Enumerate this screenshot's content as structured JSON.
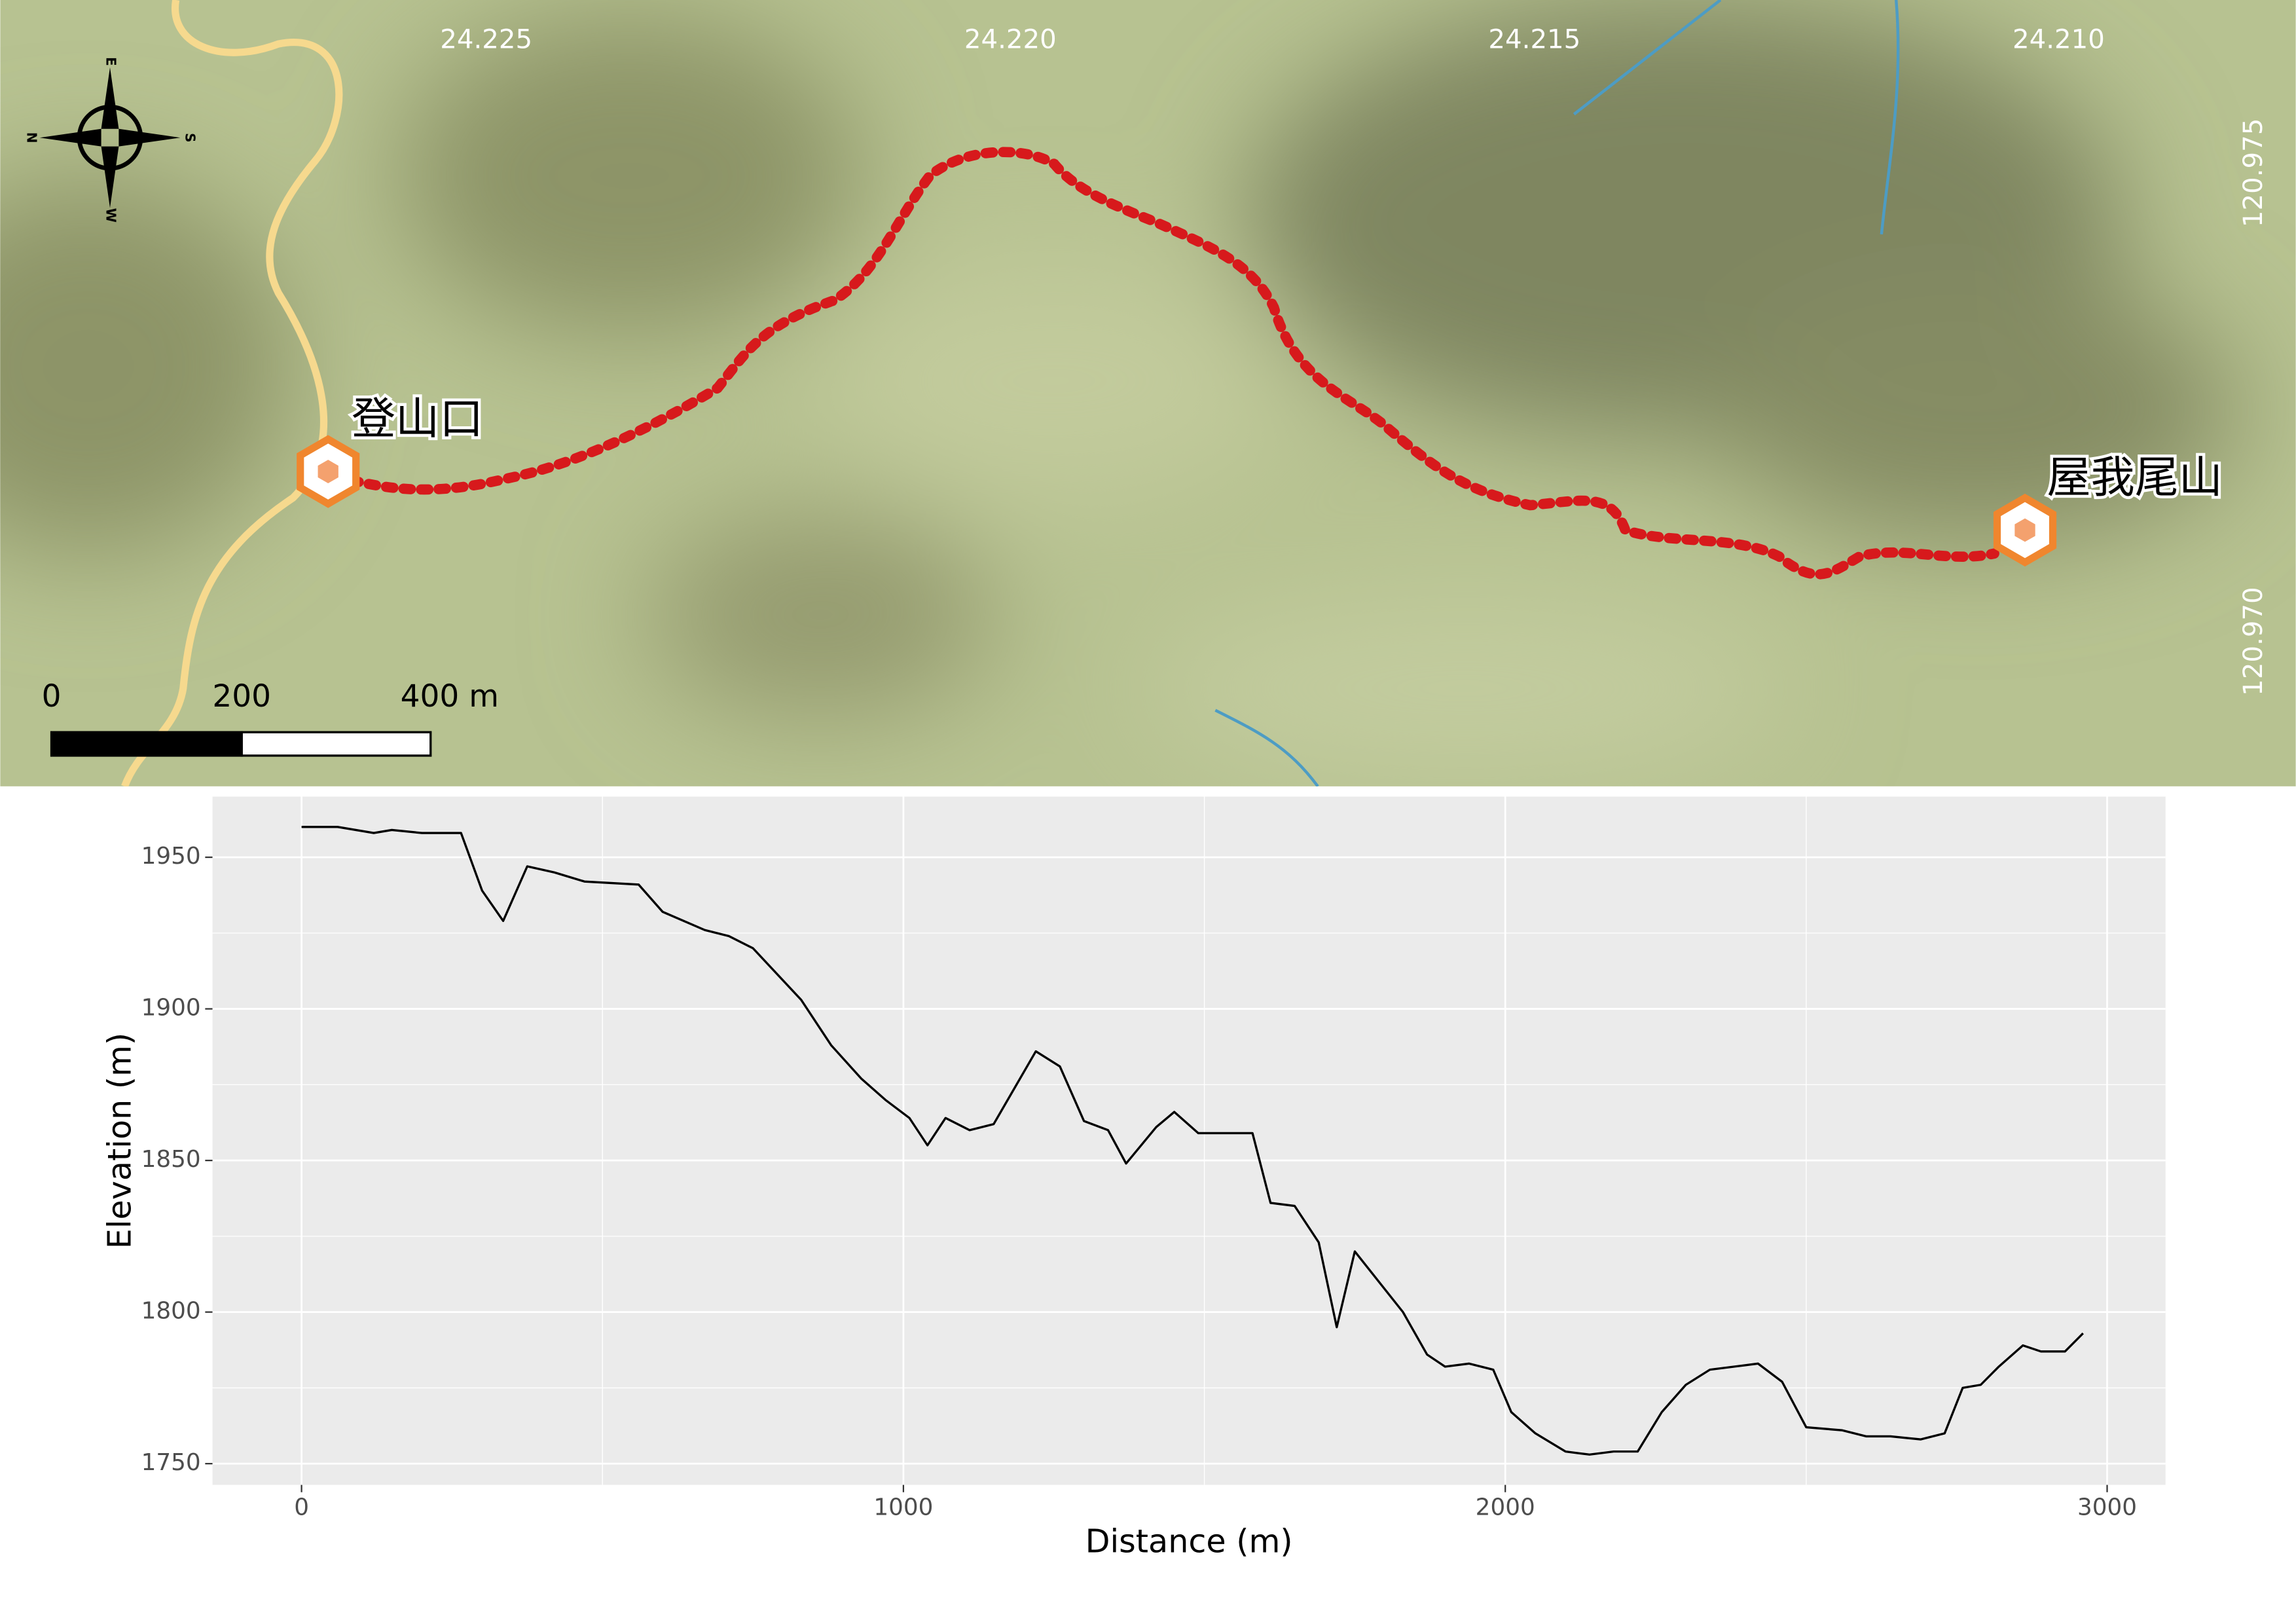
{
  "map": {
    "top_ticks": [
      "24.225",
      "24.220",
      "24.215",
      "24.210"
    ],
    "right_ticks": [
      "120.975",
      "120.970"
    ],
    "compass": {
      "north": "N",
      "east": "E",
      "south": "S",
      "west": "W"
    },
    "scale_bar": [
      "0",
      "200",
      "400 m"
    ],
    "start_label": "登山口",
    "end_label": "屋我尾山"
  },
  "chart_data": {
    "type": "line",
    "x_label": "Distance (m)",
    "y_label": "Elevation (m)",
    "x": [
      0,
      60,
      120,
      150,
      200,
      265,
      300,
      335,
      375,
      420,
      470,
      560,
      600,
      670,
      710,
      750,
      830,
      880,
      930,
      970,
      1010,
      1040,
      1070,
      1110,
      1150,
      1220,
      1260,
      1300,
      1340,
      1370,
      1420,
      1450,
      1490,
      1550,
      1580,
      1610,
      1650,
      1690,
      1720,
      1750,
      1830,
      1870,
      1900,
      1940,
      1980,
      2010,
      2050,
      2100,
      2140,
      2180,
      2220,
      2260,
      2300,
      2340,
      2380,
      2420,
      2460,
      2500,
      2560,
      2600,
      2640,
      2690,
      2730,
      2760,
      2790,
      2820,
      2860,
      2890,
      2930,
      2960
    ],
    "values": [
      1960,
      1960,
      1958,
      1959,
      1958,
      1958,
      1939,
      1929,
      1947,
      1945,
      1942,
      1941,
      1932,
      1926,
      1924,
      1920,
      1903,
      1888,
      1877,
      1870,
      1864,
      1855,
      1864,
      1860,
      1862,
      1886,
      1881,
      1863,
      1860,
      1849,
      1861,
      1866,
      1859,
      1859,
      1859,
      1836,
      1835,
      1823,
      1795,
      1820,
      1800,
      1786,
      1782,
      1783,
      1781,
      1767,
      1760,
      1754,
      1753,
      1754,
      1754,
      1767,
      1776,
      1781,
      1782,
      1783,
      1777,
      1762,
      1761,
      1759,
      1759,
      1758,
      1760,
      1775,
      1776,
      1782,
      1789,
      1787,
      1787,
      1793
    ],
    "color": "#000000",
    "xlim": [
      -148,
      3097
    ],
    "ylim": [
      1743,
      1970
    ],
    "xticks": [
      0,
      1000,
      2000,
      3000
    ],
    "yticks": [
      1750,
      1800,
      1850,
      1900,
      1950
    ],
    "xminor": [
      500,
      1500,
      2500
    ],
    "yminor": [
      1775,
      1825,
      1875,
      1925
    ],
    "grid": true
  }
}
